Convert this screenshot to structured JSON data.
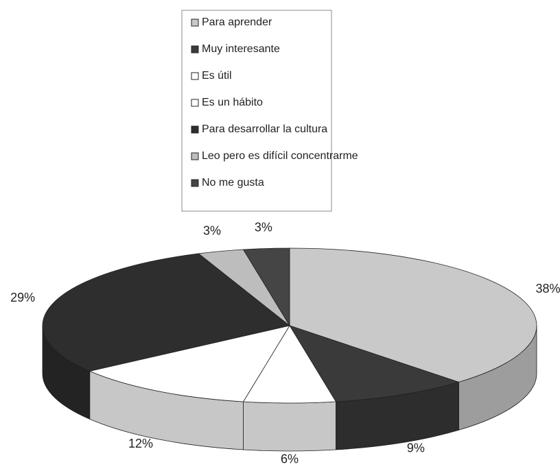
{
  "chart_data": {
    "type": "pie",
    "categories": [
      "Para aprender",
      "Muy interesante",
      "Es útil",
      "Es un hábito",
      "Para desarrollar la cultura",
      "Leo pero es difícil concentrarme",
      "No me gusta"
    ],
    "values": [
      38,
      9,
      6,
      12,
      29,
      3,
      3
    ],
    "value_labels": [
      "38%",
      "9%",
      "6%",
      "12%",
      "29%",
      "3%",
      "3%"
    ],
    "colors": [
      "#c9c9c9",
      "#3a3a3a",
      "#ffffff",
      "#ffffff",
      "#2e2e2e",
      "#bdbdbd",
      "#454545"
    ],
    "legend": "top"
  }
}
